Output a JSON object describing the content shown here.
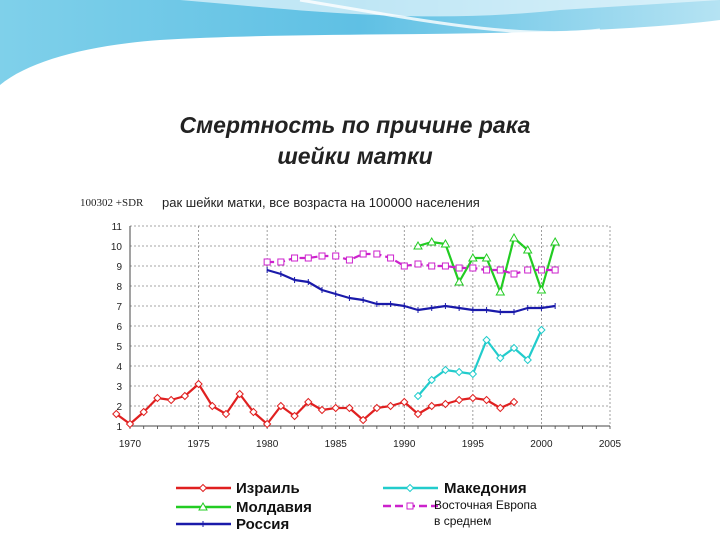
{
  "title_line1": "Смертность по причине рака",
  "title_line2": "шейки матки",
  "chart_data": {
    "type": "line",
    "subtitle_code": "100302 +SDR",
    "subtitle": "рак шейки матки, все возраста на 100000 населения",
    "xlim": [
      1970,
      2005
    ],
    "ylim": [
      1,
      11
    ],
    "x_ticks": [
      1970,
      1975,
      1980,
      1985,
      1990,
      1995,
      2000,
      2005
    ],
    "y_ticks": [
      1,
      2,
      3,
      4,
      5,
      6,
      7,
      8,
      9,
      10,
      11
    ],
    "grid": true,
    "legend_position": "bottom",
    "series": [
      {
        "name": "Израиль",
        "color": "#e02020",
        "marker": "diamond",
        "x": [
          1969,
          1970,
          1971,
          1972,
          1973,
          1974,
          1975,
          1976,
          1977,
          1978,
          1979,
          1980,
          1981,
          1982,
          1983,
          1984,
          1985,
          1986,
          1987,
          1988,
          1989,
          1990,
          1991,
          1992,
          1993,
          1994,
          1995,
          1996,
          1997,
          1998
        ],
        "y": [
          1.6,
          1.1,
          1.7,
          2.4,
          2.3,
          2.5,
          3.1,
          2.0,
          1.6,
          2.6,
          1.7,
          1.1,
          2.0,
          1.5,
          2.2,
          1.8,
          1.9,
          1.9,
          1.3,
          1.9,
          2.0,
          2.2,
          1.6,
          2.0,
          2.1,
          2.3,
          2.4,
          2.3,
          1.9,
          2.2
        ]
      },
      {
        "name": "Молдавия",
        "color": "#22cc22",
        "marker": "triangle",
        "x": [
          1991,
          1992,
          1993,
          1994,
          1995,
          1996,
          1997,
          1998,
          1999,
          2000,
          2001
        ],
        "y": [
          10.0,
          10.2,
          10.1,
          8.2,
          9.4,
          9.4,
          7.7,
          10.4,
          9.8,
          7.8,
          10.2
        ]
      },
      {
        "name": "Россия",
        "color": "#1a1aaa",
        "marker": "tick",
        "x": [
          1980,
          1981,
          1982,
          1983,
          1984,
          1985,
          1986,
          1987,
          1988,
          1989,
          1990,
          1991,
          1992,
          1993,
          1994,
          1995,
          1996,
          1997,
          1998,
          1999,
          2000,
          2001
        ],
        "y": [
          8.8,
          8.6,
          8.3,
          8.2,
          7.8,
          7.6,
          7.4,
          7.3,
          7.1,
          7.1,
          7.0,
          6.8,
          6.9,
          7.0,
          6.9,
          6.8,
          6.8,
          6.7,
          6.7,
          6.9,
          6.9,
          7.0
        ]
      },
      {
        "name": "Македония",
        "color": "#22cccc",
        "marker": "diamond",
        "x": [
          1991,
          1992,
          1993,
          1994,
          1995,
          1996,
          1997,
          1998,
          1999,
          2000
        ],
        "y": [
          2.5,
          3.3,
          3.8,
          3.7,
          3.6,
          5.3,
          4.4,
          4.9,
          4.3,
          5.8
        ]
      },
      {
        "name": "Восточная Европа в среднем",
        "name_line1": "Восточная Европа",
        "name_line2": "в среднем",
        "color": "#cc22cc",
        "marker": "square",
        "x": [
          1980,
          1981,
          1982,
          1983,
          1984,
          1985,
          1986,
          1987,
          1988,
          1989,
          1990,
          1991,
          1992,
          1993,
          1994,
          1995,
          1996,
          1997,
          1998,
          1999,
          2000,
          2001
        ],
        "y": [
          9.2,
          9.2,
          9.4,
          9.4,
          9.5,
          9.5,
          9.3,
          9.6,
          9.6,
          9.4,
          9.0,
          9.1,
          9.0,
          9.0,
          8.9,
          8.9,
          8.8,
          8.8,
          8.6,
          8.8,
          8.8,
          8.8
        ]
      }
    ]
  }
}
